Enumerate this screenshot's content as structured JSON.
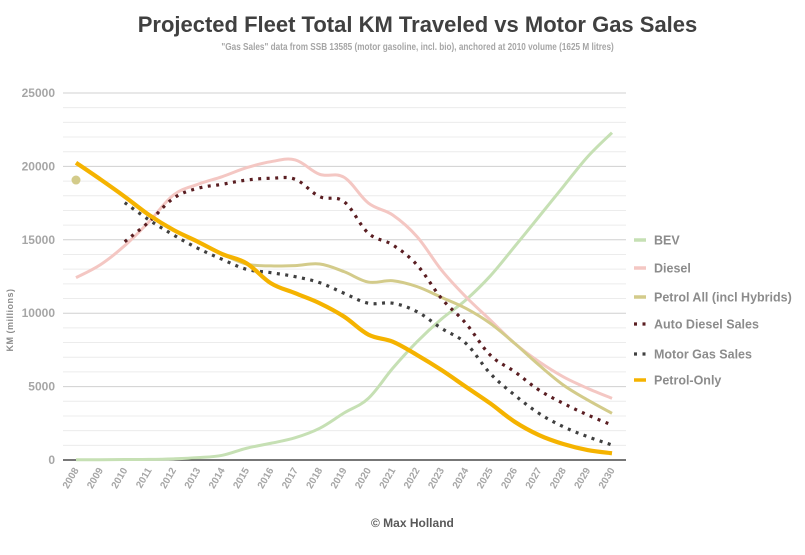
{
  "chart_data": {
    "type": "line",
    "title": "Projected Fleet Total KM Traveled vs Motor Gas Sales",
    "subtitle": "\"Gas Sales\" data from SSB 13585 (motor gasoline, incl. bio), anchored at 2010 volume (1625 M litres)",
    "xlabel": "",
    "ylabel": "KM (millions)",
    "ylim": [
      0,
      25000
    ],
    "yticks": [
      0,
      5000,
      10000,
      15000,
      20000,
      25000
    ],
    "ytick_labels": [
      "0",
      "5000",
      "10000",
      "15000",
      "20000",
      "25000"
    ],
    "minor_grid_step": 1000,
    "grid": true,
    "legend_position": "right",
    "x": [
      "2008",
      "2009",
      "2010",
      "2011",
      "2012",
      "2013",
      "2014",
      "2015",
      "2016",
      "2017",
      "2018",
      "2019",
      "2020",
      "2021",
      "2022",
      "2023",
      "2024",
      "2025",
      "2026",
      "2027",
      "2028",
      "2029",
      "2030"
    ],
    "series": [
      {
        "name": "BEV",
        "color": "#c6e0b4",
        "style": "solid",
        "values": [
          20,
          20,
          30,
          40,
          80,
          160,
          320,
          800,
          1140,
          1520,
          2160,
          3200,
          4200,
          6250,
          8060,
          9600,
          10900,
          12530,
          14530,
          16570,
          18620,
          20660,
          22300
        ]
      },
      {
        "name": "Diesel",
        "color": "#f4c7c3",
        "style": "solid",
        "values": [
          12420,
          13300,
          14600,
          16230,
          18050,
          18780,
          19300,
          19910,
          20320,
          20440,
          19460,
          19260,
          17500,
          16690,
          15210,
          12940,
          11120,
          9540,
          7950,
          6700,
          5670,
          4880,
          4200
        ]
      },
      {
        "name": "Petrol All (incl Hybrids)",
        "color": "#d3cb8a",
        "style": "solid",
        "values": [
          19070,
          null,
          17940,
          16690,
          15670,
          14870,
          14030,
          13350,
          13220,
          13240,
          13350,
          12830,
          12120,
          12210,
          11810,
          11080,
          10330,
          9310,
          7950,
          6470,
          5110,
          4090,
          3180
        ]
      },
      {
        "name": "Auto Diesel Sales",
        "color": "#5a1e22",
        "style": "dotted",
        "values": [
          null,
          null,
          14870,
          16230,
          17830,
          18510,
          18780,
          19070,
          19190,
          19120,
          17940,
          17600,
          15450,
          14650,
          13280,
          11010,
          9310,
          7150,
          6020,
          4770,
          3860,
          3070,
          2380
        ]
      },
      {
        "name": "Motor Gas Sales",
        "color": "#404040",
        "style": "dotted",
        "values": [
          null,
          null,
          17530,
          16350,
          15330,
          14420,
          13670,
          12990,
          12760,
          12490,
          12080,
          11360,
          10680,
          10680,
          10100,
          8970,
          7950,
          5900,
          4430,
          3180,
          2270,
          1590,
          1020
        ]
      },
      {
        "name": "Petrol-Only",
        "color": "#f5b300",
        "style": "solid-thick",
        "values": [
          20250,
          19120,
          17940,
          16690,
          15670,
          14870,
          14030,
          13400,
          12040,
          11360,
          10680,
          9770,
          8540,
          8060,
          7150,
          6130,
          4990,
          3860,
          2610,
          1700,
          1090,
          680,
          460
        ]
      }
    ]
  },
  "footer": {
    "credit": "© Max Holland"
  }
}
